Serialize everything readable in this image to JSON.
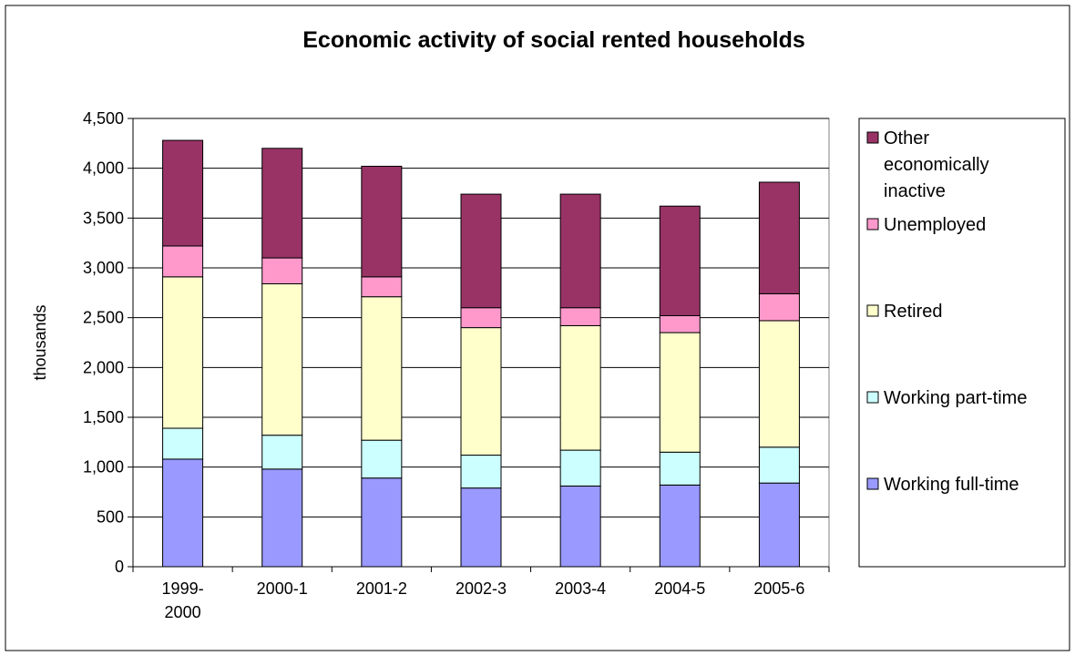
{
  "chart_data": {
    "type": "bar",
    "stacked": true,
    "title": "Economic activity of social rented households",
    "xlabel": "",
    "ylabel": "thousands",
    "ylim": [
      0,
      4500
    ],
    "yticks": [
      0,
      500,
      1000,
      1500,
      2000,
      2500,
      3000,
      3500,
      4000,
      4500
    ],
    "ytick_labels": [
      "0",
      "500",
      "1,000",
      "1,500",
      "2,000",
      "2,500",
      "3,000",
      "3,500",
      "4,000",
      "4,500"
    ],
    "grid": true,
    "legend_position": "right",
    "categories": [
      [
        "1999-",
        "2000"
      ],
      [
        "2000-1"
      ],
      [
        "2001-2"
      ],
      [
        "2002-3"
      ],
      [
        "2003-4"
      ],
      [
        "2004-5"
      ],
      [
        "2005-6"
      ]
    ],
    "series": [
      {
        "name": "Working full-time",
        "color": "#9999ff",
        "values": [
          1080,
          980,
          890,
          790,
          810,
          820,
          840
        ]
      },
      {
        "name": "Working part-time",
        "color": "#ccffff",
        "values": [
          310,
          340,
          380,
          330,
          360,
          330,
          360
        ]
      },
      {
        "name": "Retired",
        "color": "#ffffcc",
        "values": [
          1520,
          1520,
          1440,
          1280,
          1250,
          1200,
          1270
        ]
      },
      {
        "name": "Unemployed",
        "color": "#ff99cc",
        "values": [
          310,
          260,
          200,
          200,
          180,
          170,
          270
        ]
      },
      {
        "name": "Other economically inactive",
        "color": "#993366",
        "values": [
          1060,
          1100,
          1110,
          1140,
          1140,
          1100,
          1120
        ]
      }
    ],
    "legend_order": [
      {
        "series": 4,
        "lines": [
          "Other",
          "economically",
          "inactive"
        ]
      },
      {
        "series": 3,
        "lines": [
          "Unemployed"
        ]
      },
      {
        "series": 2,
        "lines": [
          "Retired"
        ]
      },
      {
        "series": 1,
        "lines": [
          "Working part-time"
        ]
      },
      {
        "series": 0,
        "lines": [
          "Working full-time"
        ]
      }
    ]
  }
}
